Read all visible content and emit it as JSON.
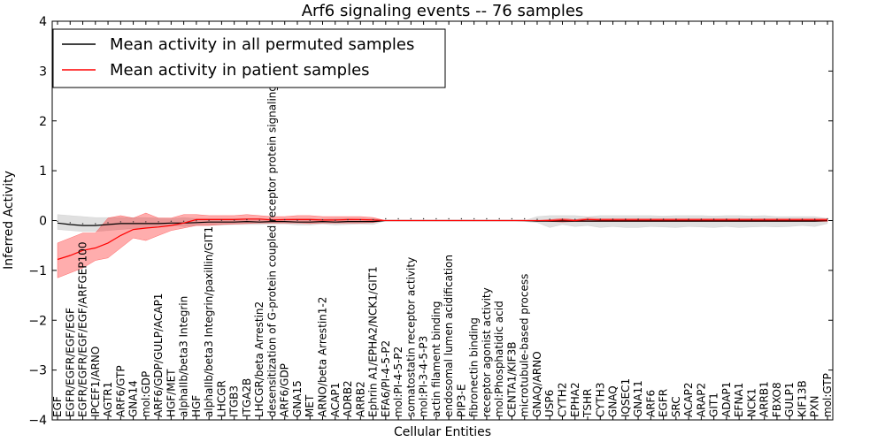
{
  "chart_data": {
    "type": "line",
    "title": "Arf6 signaling events -- 76 samples",
    "xlabel": "Cellular Entities",
    "ylabel": "Inferred Activity",
    "ylim": [
      -4,
      4
    ],
    "yticks": [
      -4,
      -3,
      -2,
      -1,
      0,
      1,
      2,
      3,
      4
    ],
    "grid": false,
    "legend_position": "top-left",
    "categories": [
      "EGF",
      "EGFR/EGFR/EGF/EGF",
      "EGFR/EGFR/EGF/EGF/ARFGEP100",
      "IPCEF1/ARNO",
      "AGTR1",
      "ARF6/GTP",
      "GNA14",
      "mol:GDP",
      "ARF6/GDP/GULP/ACAP1",
      "HGF/MET",
      "alphaIIb/beta3 Integrin",
      "HGF",
      "alphaIIb/beta3 Integrin/paxillin/GIT1",
      "LHCGR",
      "ITGB3",
      "ITGA2B",
      "LHCGR/beta Arrestin2",
      "desensitization of G-protein coupled receptor protein signaling pathway",
      "ARF6/GDP",
      "GNA15",
      "MET",
      "ARNO/beta Arrestin1-2",
      "ACAP1",
      "ADRB2",
      "ARRB2",
      "Ephrin A1/EPHA2/NCK1/GIT1",
      "EFA6/PI-4-5-P2",
      "mol:PI-4-5-P2",
      "somatostatin receptor activity",
      "mol:PI-3-4-5-P3",
      "actin filament binding",
      "endosomal lumen acidification",
      "PIP3-E",
      "fibronectin binding",
      "receptor agonist activity",
      "mol:Phosphatidic acid",
      "CENTA1/KIF3B",
      "microtubule-based process",
      "GNAQ/ARNO",
      "USP6",
      "CYTH2",
      "EPHA2",
      "TSHR",
      "CYTH3",
      "GNAQ",
      "IQSEC1",
      "GNA11",
      "ARF6",
      "EGFR",
      "SRC",
      "ACAP2",
      "ARAP2",
      "GIT1",
      "ADAP1",
      "EFNA1",
      "NCK1",
      "ARRB1",
      "FBXO8",
      "GULP1",
      "KIF13B",
      "PXN",
      "mol:GTP"
    ],
    "series": [
      {
        "name": "Mean activity in all permuted samples",
        "color": "#000000",
        "values": [
          -0.05,
          -0.08,
          -0.1,
          -0.1,
          -0.08,
          -0.06,
          -0.06,
          -0.06,
          -0.06,
          -0.05,
          -0.05,
          -0.04,
          -0.03,
          -0.03,
          -0.03,
          -0.02,
          -0.03,
          -0.02,
          -0.02,
          -0.03,
          -0.03,
          -0.02,
          -0.03,
          -0.02,
          -0.02,
          -0.02,
          0,
          0,
          0,
          0,
          0,
          0,
          0,
          0,
          0,
          0,
          0,
          0,
          -0.01,
          -0.01,
          -0.01,
          -0.01,
          -0.01,
          -0.01,
          -0.01,
          -0.01,
          -0.01,
          -0.01,
          -0.01,
          -0.01,
          -0.01,
          -0.01,
          -0.01,
          -0.01,
          -0.01,
          -0.01,
          -0.01,
          -0.01,
          -0.01,
          -0.01,
          -0.01,
          0
        ],
        "lower": [
          -0.18,
          -0.2,
          -0.22,
          -0.22,
          -0.2,
          -0.18,
          -0.16,
          -0.14,
          -0.12,
          -0.1,
          -0.12,
          -0.1,
          -0.09,
          -0.09,
          -0.08,
          -0.08,
          -0.08,
          -0.07,
          -0.07,
          -0.09,
          -0.09,
          -0.07,
          -0.09,
          -0.08,
          -0.07,
          -0.08,
          0,
          0,
          0,
          0,
          0,
          0,
          0,
          0,
          0,
          0,
          0,
          -0.02,
          -0.04,
          -0.14,
          -0.08,
          -0.12,
          -0.1,
          -0.14,
          -0.12,
          -0.14,
          -0.14,
          -0.12,
          -0.13,
          -0.14,
          -0.12,
          -0.13,
          -0.14,
          -0.12,
          -0.14,
          -0.13,
          -0.12,
          -0.13,
          -0.12,
          -0.1,
          -0.12,
          -0.06
        ],
        "upper": [
          0.12,
          0.1,
          0.08,
          0.06,
          0.06,
          0.06,
          0.06,
          0.06,
          0.05,
          0.04,
          0.06,
          0.04,
          0.04,
          0.04,
          0.04,
          0.04,
          0.04,
          0.03,
          0.03,
          0.04,
          0.04,
          0.03,
          0.04,
          0.04,
          0.03,
          0.04,
          0,
          0,
          0,
          0,
          0,
          0,
          0,
          0,
          0,
          0,
          0,
          0,
          0.08,
          0.1,
          0.1,
          0.1,
          0.08,
          0.1,
          0.1,
          0.1,
          0.1,
          0.1,
          0.09,
          0.1,
          0.1,
          0.1,
          0.09,
          0.1,
          0.1,
          0.09,
          0.1,
          0.08,
          0.08,
          0.08,
          0.08,
          0.04
        ]
      },
      {
        "name": "Mean activity in patient samples",
        "color": "#ff0000",
        "values": [
          -0.78,
          -0.7,
          -0.6,
          -0.55,
          -0.45,
          -0.3,
          -0.18,
          -0.15,
          -0.13,
          -0.1,
          -0.05,
          0.02,
          0.02,
          0.02,
          0.02,
          0.03,
          0.03,
          0.01,
          0.02,
          0.02,
          0.02,
          0.01,
          0.01,
          0.02,
          0.02,
          0.01,
          0,
          0,
          0,
          0,
          0,
          0,
          0,
          0,
          0,
          0,
          0,
          0,
          0,
          0,
          0.01,
          0,
          0.02,
          0.01,
          0.01,
          0.01,
          0.01,
          0.01,
          0.01,
          0.01,
          0.01,
          0.01,
          0.01,
          0.01,
          0.01,
          0.01,
          0.01,
          0.01,
          0.01,
          0.01,
          0.01,
          0.01
        ],
        "lower": [
          -1.15,
          -1.05,
          -0.95,
          -0.8,
          -0.75,
          -0.55,
          -0.35,
          -0.4,
          -0.3,
          -0.2,
          -0.15,
          -0.1,
          -0.1,
          -0.08,
          -0.07,
          -0.06,
          -0.05,
          -0.05,
          -0.05,
          -0.05,
          -0.06,
          -0.05,
          -0.05,
          -0.05,
          -0.05,
          -0.04,
          0,
          0,
          0,
          0,
          0,
          0,
          0,
          0,
          0,
          0,
          0,
          0,
          0,
          -0.02,
          -0.03,
          -0.02,
          -0.02,
          -0.02,
          -0.02,
          -0.02,
          -0.02,
          -0.02,
          -0.02,
          -0.02,
          -0.02,
          -0.02,
          -0.02,
          -0.02,
          -0.02,
          -0.02,
          -0.02,
          -0.02,
          -0.02,
          -0.02,
          -0.02,
          -0.02
        ],
        "upper": [
          -0.45,
          -0.35,
          -0.25,
          -0.25,
          0.05,
          0.1,
          0.05,
          0.15,
          0.05,
          0.05,
          0.12,
          0.12,
          0.1,
          0.1,
          0.1,
          0.12,
          0.1,
          0.08,
          0.08,
          0.1,
          0.1,
          0.08,
          0.08,
          0.08,
          0.08,
          0.06,
          0,
          0,
          0,
          0,
          0,
          0,
          0,
          0,
          0,
          0,
          0,
          0,
          0,
          0.02,
          0.04,
          0.02,
          0.05,
          0.04,
          0.04,
          0.04,
          0.04,
          0.04,
          0.04,
          0.04,
          0.04,
          0.04,
          0.04,
          0.04,
          0.04,
          0.04,
          0.04,
          0.04,
          0.04,
          0.04,
          0.04,
          0.04
        ]
      }
    ]
  }
}
